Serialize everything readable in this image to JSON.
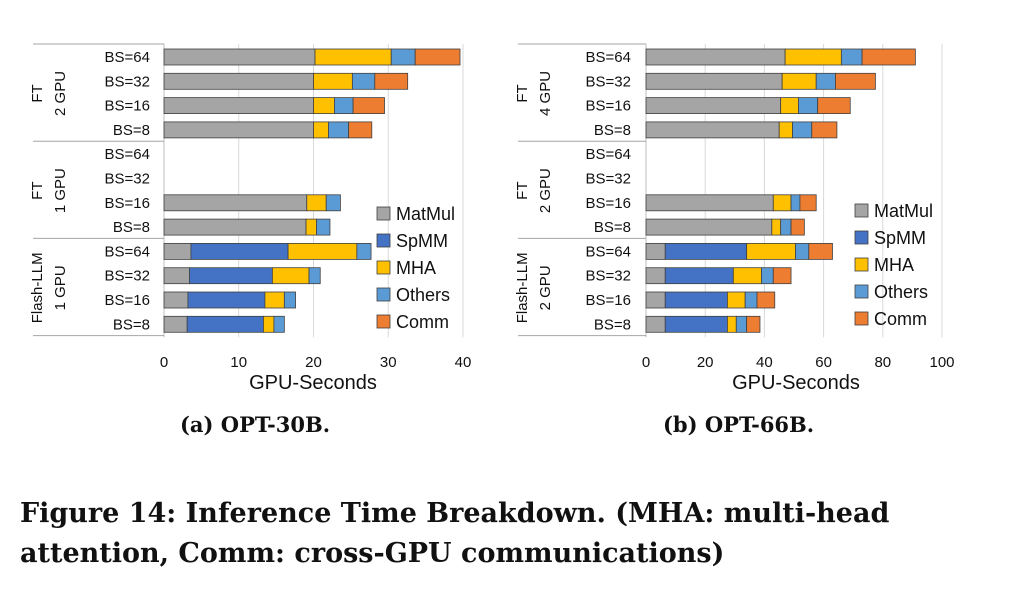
{
  "figure": {
    "caption": "Figure 14: Inference Time Breakdown. (MHA: multi-head attention, Comm: cross-GPU communications)"
  },
  "legend_labels": [
    "MatMul",
    "SpMM",
    "MHA",
    "Others",
    "Comm"
  ],
  "colors": {
    "MatMul": "#a5a5a5",
    "SpMM": "#4472c4",
    "MHA": "#ffc000",
    "Others": "#5b9bd5",
    "Comm": "#ed7d31"
  },
  "chart_data": [
    {
      "type": "bar",
      "orientation": "horizontal",
      "stacked": true,
      "caption": "(a) OPT-30B.",
      "xlabel": "GPU-Seconds",
      "xlim": [
        0,
        40
      ],
      "xticks": [
        0,
        10,
        20,
        30,
        40
      ],
      "grid": true,
      "legend_position": "right",
      "groups": [
        {
          "label": [
            "FT",
            "2 GPU"
          ],
          "categories": [
            "BS=64",
            "BS=32",
            "BS=16",
            "BS=8"
          ]
        },
        {
          "label": [
            "FT",
            "1 GPU"
          ],
          "categories": [
            "BS=64",
            "BS=32",
            "BS=16",
            "BS=8"
          ]
        },
        {
          "label": [
            "Flash-LLM",
            "1 GPU"
          ],
          "categories": [
            "BS=64",
            "BS=32",
            "BS=16",
            "BS=8"
          ]
        }
      ],
      "categories": [
        "BS=64",
        "BS=32",
        "BS=16",
        "BS=8",
        "BS=64",
        "BS=32",
        "BS=16",
        "BS=8",
        "BS=64",
        "BS=32",
        "BS=16",
        "BS=8"
      ],
      "series": [
        {
          "name": "MatMul",
          "values": [
            20.2,
            20.0,
            20.0,
            20.0,
            null,
            null,
            19.1,
            19.0,
            3.6,
            3.4,
            3.2,
            3.1
          ]
        },
        {
          "name": "SpMM",
          "values": [
            0,
            0,
            0,
            0,
            null,
            null,
            0,
            0,
            13.0,
            11.1,
            10.3,
            10.2
          ]
        },
        {
          "name": "MHA",
          "values": [
            10.2,
            5.2,
            2.8,
            2.0,
            null,
            null,
            2.6,
            1.4,
            9.2,
            4.9,
            2.6,
            1.4
          ]
        },
        {
          "name": "Others",
          "values": [
            3.2,
            3.0,
            2.5,
            2.7,
            null,
            null,
            1.9,
            1.8,
            1.9,
            1.5,
            1.5,
            1.4
          ]
        },
        {
          "name": "Comm",
          "values": [
            6.0,
            4.4,
            4.2,
            3.1,
            null,
            null,
            0,
            0,
            0,
            0,
            0,
            0
          ]
        }
      ]
    },
    {
      "type": "bar",
      "orientation": "horizontal",
      "stacked": true,
      "caption": "(b) OPT-66B.",
      "xlabel": "GPU-Seconds",
      "xlim": [
        0,
        100
      ],
      "xticks": [
        0,
        20,
        40,
        60,
        80,
        100
      ],
      "grid": true,
      "legend_position": "right",
      "groups": [
        {
          "label": [
            "FT",
            "4 GPU"
          ],
          "categories": [
            "BS=64",
            "BS=32",
            "BS=16",
            "BS=8"
          ]
        },
        {
          "label": [
            "FT",
            "2 GPU"
          ],
          "categories": [
            "BS=64",
            "BS=32",
            "BS=16",
            "BS=8"
          ]
        },
        {
          "label": [
            "Flash-LLM",
            "2 GPU"
          ],
          "categories": [
            "BS=64",
            "BS=32",
            "BS=16",
            "BS=8"
          ]
        }
      ],
      "categories": [
        "BS=64",
        "BS=32",
        "BS=16",
        "BS=8",
        "BS=64",
        "BS=32",
        "BS=16",
        "BS=8",
        "BS=64",
        "BS=32",
        "BS=16",
        "BS=8"
      ],
      "series": [
        {
          "name": "MatMul",
          "values": [
            47,
            46,
            45.5,
            45,
            null,
            null,
            43,
            42.5,
            6.5,
            6.5,
            6.5,
            6.5
          ]
        },
        {
          "name": "SpMM",
          "values": [
            0,
            0,
            0,
            0,
            null,
            null,
            0,
            0,
            27.5,
            23,
            21,
            21
          ]
        },
        {
          "name": "MHA",
          "values": [
            19,
            11.5,
            6,
            4.5,
            null,
            null,
            6,
            3,
            16.5,
            9.5,
            6,
            3
          ]
        },
        {
          "name": "Others",
          "values": [
            7,
            6.5,
            6.5,
            6.5,
            null,
            null,
            3,
            3.5,
            4.5,
            4,
            4,
            3.5
          ]
        },
        {
          "name": "Comm",
          "values": [
            18,
            13.5,
            11,
            8.5,
            null,
            null,
            5.5,
            4.5,
            8,
            6,
            6,
            4.5
          ]
        }
      ]
    }
  ]
}
